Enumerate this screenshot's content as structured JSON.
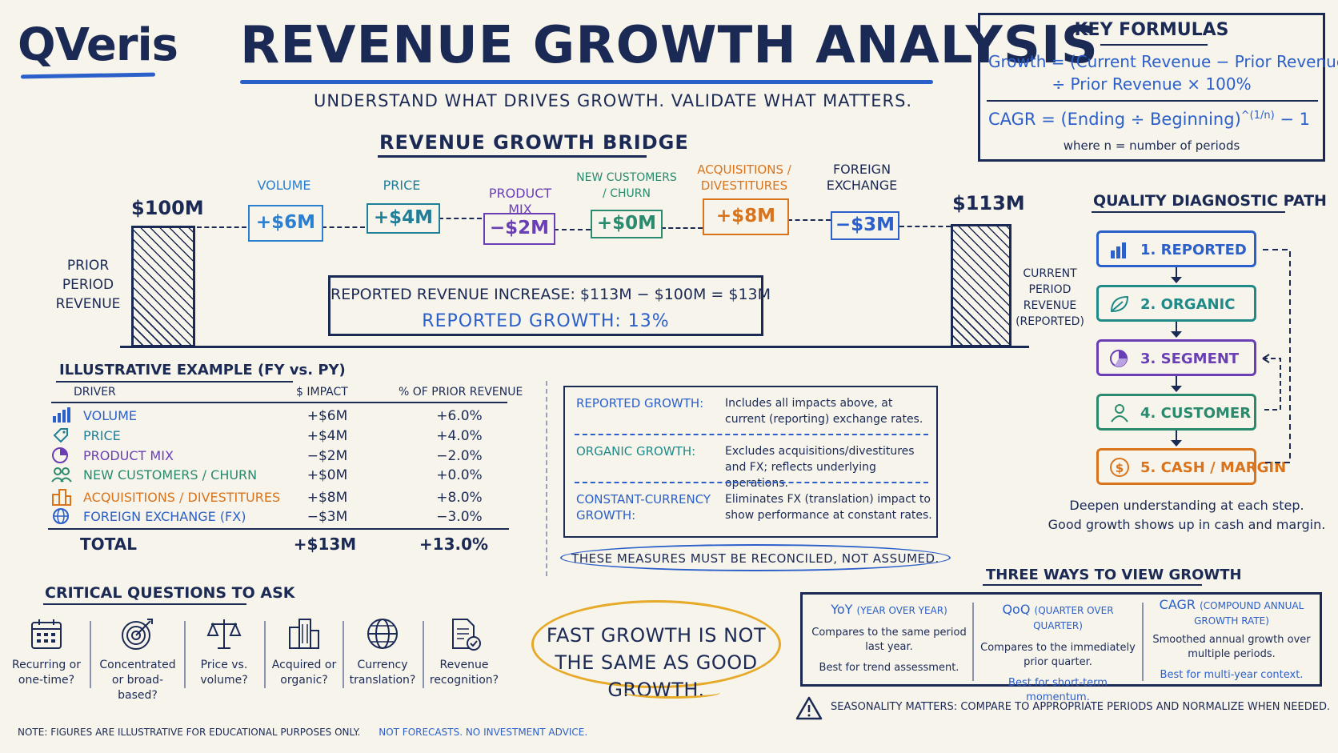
{
  "header": {
    "logo": "QVeris",
    "title": "REVENUE GROWTH ANALYSIS",
    "subtitle": "UNDERSTAND WHAT DRIVES GROWTH.  VALIDATE WHAT MATTERS."
  },
  "formulas": {
    "title": "KEY FORMULAS",
    "growth_line1": "Growth = (Current Revenue − Prior Revenue)",
    "growth_line2": "÷ Prior Revenue × 100%",
    "cagr": "CAGR = (Ending ÷ Beginning)",
    "cagr_exp": "^(1/n)",
    "cagr_tail": " − 1",
    "cagr_note": "where n = number of periods"
  },
  "bridge": {
    "title": "REVENUE GROWTH BRIDGE",
    "start_value": "$100M",
    "start_label": "PRIOR PERIOD REVENUE",
    "end_value": "$113M",
    "end_label": "CURRENT PERIOD REVENUE (REPORTED)",
    "steps": [
      {
        "label": "VOLUME",
        "value": "+$6M",
        "color": "#2b7fd0"
      },
      {
        "label": "PRICE",
        "value": "+$4M",
        "color": "#1f7f9a"
      },
      {
        "label": "PRODUCT MIX",
        "value": "−$2M",
        "color": "#6a3fb5"
      },
      {
        "label": "NEW CUSTOMERS / CHURN",
        "value": "+$0M",
        "color": "#2a8a6e"
      },
      {
        "label": "ACQUISITIONS / DIVESTITURES",
        "value": "+$8M",
        "color": "#d9741c"
      },
      {
        "label": "FOREIGN EXCHANGE",
        "value": "−$3M",
        "color": "#2b5fc9"
      }
    ],
    "reported_line": "REPORTED REVENUE INCREASE:  $113M − $100M = $13M",
    "reported_growth": "REPORTED GROWTH: 13%"
  },
  "table": {
    "title": "ILLUSTRATIVE EXAMPLE (FY vs. PY)",
    "headers": [
      "DRIVER",
      "$ IMPACT",
      "% OF PRIOR REVENUE"
    ],
    "rows": [
      {
        "driver": "VOLUME",
        "impact": "+$6M",
        "pct": "+6.0%",
        "icon": "bar-chart-icon",
        "color": "#2b5fc9"
      },
      {
        "driver": "PRICE",
        "impact": "+$4M",
        "pct": "+4.0%",
        "icon": "price-tag-icon",
        "color": "#1f7f9a"
      },
      {
        "driver": "PRODUCT MIX",
        "impact": "−$2M",
        "pct": "−2.0%",
        "icon": "pie-chart-icon",
        "color": "#6a3fb5"
      },
      {
        "driver": "NEW CUSTOMERS / CHURN",
        "impact": "+$0M",
        "pct": "+0.0%",
        "icon": "people-icon",
        "color": "#2a8a6e"
      },
      {
        "driver": "ACQUISITIONS / DIVESTITURES",
        "impact": "+$8M",
        "pct": "+8.0%",
        "icon": "buildings-icon",
        "color": "#d9741c"
      },
      {
        "driver": "FOREIGN EXCHANGE (FX)",
        "impact": "−$3M",
        "pct": "−3.0%",
        "icon": "globe-icon",
        "color": "#2b5fc9"
      }
    ],
    "total_label": "TOTAL",
    "total_impact": "+$13M",
    "total_pct": "+13.0%"
  },
  "definitions": [
    {
      "term": "REPORTED GROWTH:",
      "desc": "Includes all impacts above, at current (reporting) exchange rates."
    },
    {
      "term": "ORGANIC GROWTH:",
      "desc": "Excludes acquisitions/divestitures and FX; reflects underlying operations."
    },
    {
      "term": "CONSTANT-CURRENCY GROWTH:",
      "desc": "Eliminates FX (translation) impact to show performance at constant rates."
    }
  ],
  "reconcile": "THESE MEASURES MUST BE RECONCILED, NOT ASSUMED.",
  "diagnostic": {
    "title": "QUALITY DIAGNOSTIC PATH",
    "steps": [
      {
        "label": "1. REPORTED",
        "icon": "bar-chart-icon",
        "color": "#2b5fc9"
      },
      {
        "label": "2. ORGANIC",
        "icon": "leaf-icon",
        "color": "#1f8a88"
      },
      {
        "label": "3. SEGMENT",
        "icon": "pie-chart-icon",
        "color": "#6a3fb5"
      },
      {
        "label": "4. CUSTOMER",
        "icon": "person-icon",
        "color": "#2a8a6e"
      },
      {
        "label": "5. CASH / MARGIN",
        "icon": "dollar-icon",
        "color": "#d9741c"
      }
    ],
    "note1": "Deepen understanding at each step.",
    "note2": "Good growth shows up in cash and margin."
  },
  "three_ways": {
    "title": "THREE WAYS TO VIEW GROWTH",
    "cols": [
      {
        "head": "YoY",
        "sub": "(YEAR OVER YEAR)",
        "desc": "Compares to the same period last year.",
        "best": "Best for trend assessment."
      },
      {
        "head": "QoQ",
        "sub": "(QUARTER OVER QUARTER)",
        "desc": "Compares to the immediately prior quarter.",
        "best": "Best for short-term momentum."
      },
      {
        "head": "CAGR",
        "sub": "(COMPOUND ANNUAL GROWTH RATE)",
        "desc": "Smoothed annual growth over multiple periods.",
        "best": "Best for multi-year context."
      }
    ],
    "seasonality": "SEASONALITY MATTERS: COMPARE TO APPROPRIATE PERIODS AND NORMALIZE WHEN NEEDED."
  },
  "fast_growth": "FAST GROWTH IS NOT THE SAME AS GOOD GROWTH.",
  "questions": {
    "title": "CRITICAL QUESTIONS TO ASK",
    "items": [
      {
        "q": "Recurring or one-time?",
        "icon": "calendar-icon"
      },
      {
        "q": "Concentrated or broad-based?",
        "icon": "target-icon"
      },
      {
        "q": "Price vs. volume?",
        "icon": "scales-icon"
      },
      {
        "q": "Acquired or organic?",
        "icon": "buildings-icon"
      },
      {
        "q": "Currency translation?",
        "icon": "globe-icon"
      },
      {
        "q": "Revenue recognition?",
        "icon": "document-check-icon"
      }
    ]
  },
  "note": {
    "a": "NOTE: FIGURES ARE ILLUSTRATIVE FOR EDUCATIONAL PURPOSES ONLY.",
    "b": "NOT FORECASTS.  NO INVESTMENT ADVICE."
  }
}
